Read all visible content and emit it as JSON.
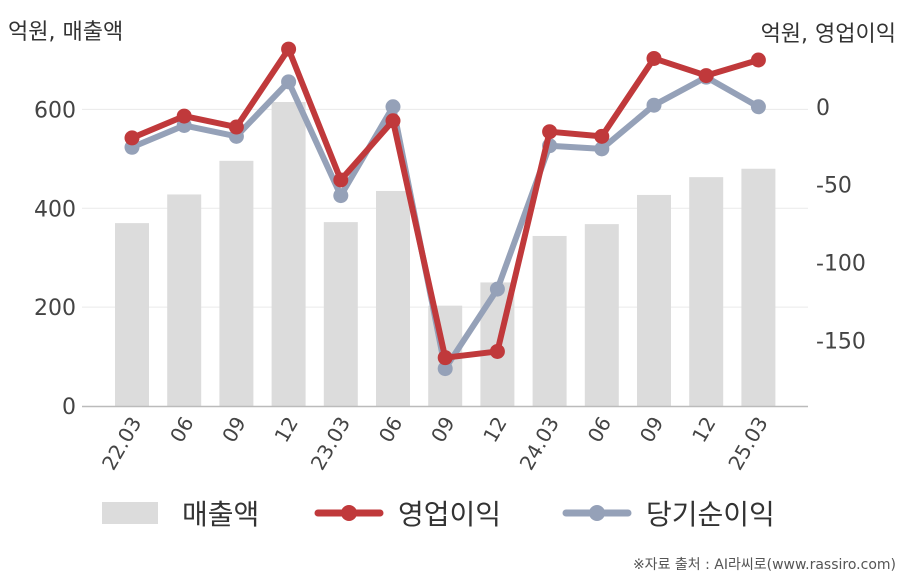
{
  "chart_data": {
    "type": "bar+line",
    "left_unit": "억원, 매출액",
    "right_unit": "억원, 영업이익",
    "categories": [
      "22.03",
      "06",
      "09",
      "12",
      "23.03",
      "06",
      "09",
      "12",
      "24.03",
      "06",
      "09",
      "12",
      "25.03"
    ],
    "left_axis": {
      "min": 0,
      "max": 700,
      "ticks": [
        0,
        200,
        400,
        600
      ]
    },
    "right_axis": {
      "min": -192,
      "max": 30,
      "ticks": [
        0,
        -50,
        -100,
        -150
      ]
    },
    "series": [
      {
        "name": "매출액",
        "type": "bar",
        "axis": "left",
        "color": "#dcdcdc",
        "values": [
          370,
          428,
          496,
          615,
          372,
          435,
          203,
          250,
          344,
          368,
          427,
          463,
          480
        ]
      },
      {
        "name": "영업이익",
        "type": "line",
        "axis": "right",
        "color": "#c0393b",
        "values": [
          -20,
          -6,
          -13,
          37,
          -47,
          -9,
          -161,
          -157,
          -16,
          -19,
          31,
          20,
          30
        ]
      },
      {
        "name": "당기순이익",
        "type": "line",
        "axis": "right",
        "color": "#95a1b8",
        "values": [
          -26,
          -12,
          -19,
          16,
          -57,
          0,
          -168,
          -117,
          -25,
          -27,
          1,
          19,
          0
        ]
      }
    ],
    "grid": true,
    "legend_position": "bottom"
  },
  "source": "※자료 출처 : AI라씨로(www.rassiro.com)"
}
